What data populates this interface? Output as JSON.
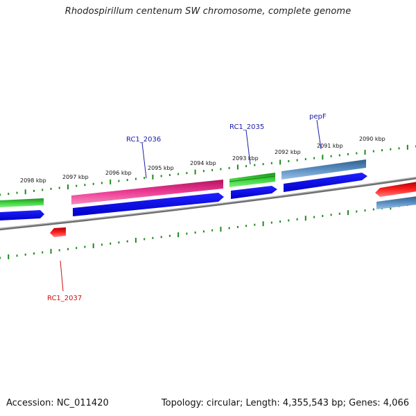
{
  "title": "Rhodospirillum centenum SW chromosome, complete genome",
  "footer": {
    "accession": "Accession: NC_011420",
    "summary": "Topology: circular; Length: 4,355,543 bp; Genes: 4,066"
  },
  "tick_labels": [
    "2098 kbp",
    "2097 kbp",
    "2096 kbp",
    "2095 kbp",
    "2094 kbp",
    "2093 kbp",
    "2092 kbp",
    "2091 kbp",
    "2090 kbp"
  ],
  "gene_labels": {
    "rc1_2036": "RC1_2036",
    "rc1_2035": "RC1_2035",
    "pepf": "pepF",
    "rc1_2037": "RC1_2037"
  },
  "colors": {
    "backbone": "#7a7a7a",
    "tick_green": "#1d8a1d",
    "gene_green": "#2fc42f",
    "cds_blue": "#0a0ae6",
    "pink": "#e8348c",
    "steel": "#4a7fb0",
    "red": "#ee1111",
    "label_blue": "#1a1aa8",
    "label_red": "#cc1111"
  }
}
